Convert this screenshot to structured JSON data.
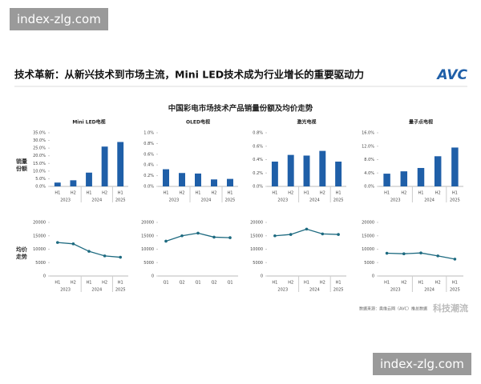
{
  "watermark_top": "index-zlg.com",
  "headline": "技术革新：从新兴技术到市场主流，Mini LED技术成为行业增长的重要驱动力",
  "logo": "AVC",
  "title": "中国彩电市场技术产品销量份额及均价走势",
  "row_labels": [
    "销量份额",
    "均价走势"
  ],
  "source": "数据来源：奥维云网（AVC）推总数据",
  "watermark_brand": "科技潮流",
  "watermark_bottom": "index-zlg.com",
  "chart_data": [
    {
      "type": "bar",
      "title": "Mini LED电视",
      "categories": [
        "H1",
        "H2",
        "H1",
        "H2",
        "H1"
      ],
      "x_groups": [
        "2023",
        "2023",
        "2024",
        "2024",
        "2025"
      ],
      "values": [
        2.5,
        4,
        9,
        26,
        29
      ],
      "color": "#1f5fa8",
      "ylim": [
        0,
        35
      ],
      "yticks": [
        {
          "value": 0,
          "label": "0.0%"
        },
        {
          "value": 5,
          "label": "5.0%"
        },
        {
          "value": 10,
          "label": "10.0%"
        },
        {
          "value": 15,
          "label": "15.0%"
        },
        {
          "value": 20,
          "label": "20.0%"
        },
        {
          "value": 25,
          "label": "25.0%"
        },
        {
          "value": 30,
          "label": "30.0%"
        },
        {
          "value": 35,
          "label": "35.0%"
        }
      ],
      "grid": false
    },
    {
      "type": "bar",
      "title": "OLED电视",
      "categories": [
        "H1",
        "H2",
        "H1",
        "H2",
        "H1"
      ],
      "x_groups": [
        "2023",
        "2023",
        "2024",
        "2024",
        "2025"
      ],
      "values": [
        0.32,
        0.25,
        0.24,
        0.13,
        0.14
      ],
      "color": "#1f5fa8",
      "ylim": [
        0,
        1
      ],
      "yticks": [
        {
          "value": 0,
          "label": "0.0%"
        },
        {
          "value": 0.2,
          "label": "0.2%"
        },
        {
          "value": 0.4,
          "label": "0.4%"
        },
        {
          "value": 0.6,
          "label": "0.6%"
        },
        {
          "value": 0.8,
          "label": "0.8%"
        },
        {
          "value": 1,
          "label": "1.0%"
        }
      ],
      "grid": false
    },
    {
      "type": "bar",
      "title": "激光电视",
      "categories": [
        "H1",
        "H2",
        "H1",
        "H2",
        "H1"
      ],
      "x_groups": [
        "2023",
        "2023",
        "2024",
        "2024",
        "2025"
      ],
      "values": [
        0.37,
        0.47,
        0.46,
        0.53,
        0.37
      ],
      "color": "#1f5fa8",
      "ylim": [
        0,
        0.8
      ],
      "yticks": [
        {
          "value": 0,
          "label": "0.0%"
        },
        {
          "value": 0.2,
          "label": "0.2%"
        },
        {
          "value": 0.4,
          "label": "0.4%"
        },
        {
          "value": 0.6,
          "label": "0.6%"
        },
        {
          "value": 0.8,
          "label": "0.8%"
        }
      ],
      "grid": false
    },
    {
      "type": "bar",
      "title": "量子点电视",
      "categories": [
        "H1",
        "H2",
        "H1",
        "H2",
        "H1"
      ],
      "x_groups": [
        "2023",
        "2023",
        "2024",
        "2024",
        "2025"
      ],
      "values": [
        3.8,
        4.5,
        5.5,
        9,
        11.6
      ],
      "color": "#1f5fa8",
      "ylim": [
        0,
        16
      ],
      "yticks": [
        {
          "value": 0,
          "label": "0.0%"
        },
        {
          "value": 4,
          "label": "4.0%"
        },
        {
          "value": 8,
          "label": "8.0%"
        },
        {
          "value": 12,
          "label": "12.0%"
        },
        {
          "value": 16,
          "label": "16.0%"
        }
      ],
      "grid": false
    },
    {
      "type": "line",
      "categories": [
        "H1",
        "H2",
        "H1",
        "H2",
        "H1"
      ],
      "x_groups": [
        "2023",
        "2023",
        "2024",
        "2024",
        "2025"
      ],
      "values": [
        12500,
        12000,
        9200,
        7500,
        7000
      ],
      "color": "#1d6a80",
      "ylim": [
        0,
        20000
      ],
      "yticks": [
        0,
        5000,
        10000,
        15000,
        20000
      ],
      "grid": false
    },
    {
      "type": "line",
      "categories": [
        "Q1",
        "Q2",
        "Q1",
        "Q2",
        "Q1"
      ],
      "values": [
        13000,
        15000,
        16000,
        14500,
        14300
      ],
      "color": "#1d6a80",
      "ylim": [
        0,
        20000
      ],
      "yticks": [
        0,
        5000,
        10000,
        15000,
        20000
      ],
      "grid": false
    },
    {
      "type": "line",
      "categories": [
        "H1",
        "H2",
        "H1",
        "H2",
        "H1"
      ],
      "x_groups": [
        "2023",
        "2023",
        "2024",
        "2024",
        "2025"
      ],
      "values": [
        15000,
        15500,
        17500,
        15700,
        15500
      ],
      "color": "#1d6a80",
      "ylim": [
        0,
        20000
      ],
      "yticks": [
        0,
        5000,
        10000,
        15000,
        20000
      ],
      "grid": false
    },
    {
      "type": "line",
      "categories": [
        "H1",
        "H2",
        "H1",
        "H2",
        "H1"
      ],
      "x_groups": [
        "2023",
        "2023",
        "2024",
        "2024",
        "2025"
      ],
      "values": [
        8500,
        8300,
        8600,
        7500,
        6300
      ],
      "color": "#1d6a80",
      "ylim": [
        0,
        20000
      ],
      "yticks": [
        0,
        5000,
        10000,
        15000,
        20000
      ],
      "grid": false
    }
  ]
}
